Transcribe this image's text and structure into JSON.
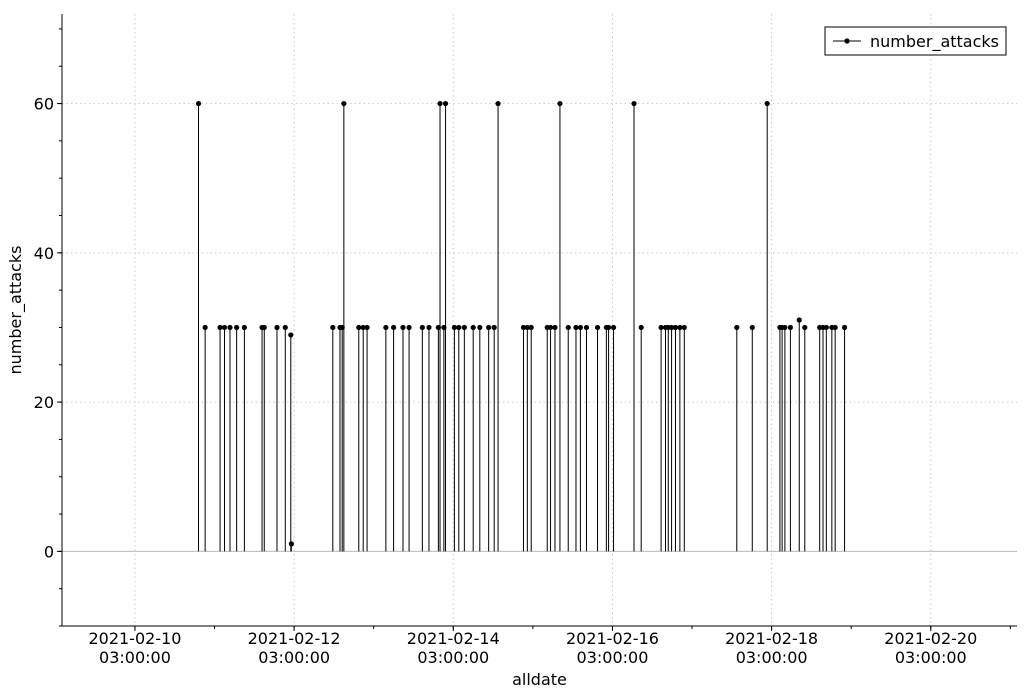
{
  "chart_data": {
    "type": "stem",
    "title": "",
    "xlabel": "alldate",
    "ylabel": "number_attacks",
    "grid": true,
    "legend": {
      "placement": "top-right",
      "entries": [
        "number_attacks"
      ]
    },
    "baseline": 0,
    "xlim": [
      "2021-02-09 05:00:00",
      "2021-02-21 05:00:00"
    ],
    "ylim": [
      -10,
      72
    ],
    "x_ticks": [
      {
        "date": "2021-02-10",
        "time": "03:00:00"
      },
      {
        "date": "2021-02-12",
        "time": "03:00:00"
      },
      {
        "date": "2021-02-14",
        "time": "03:00:00"
      },
      {
        "date": "2021-02-16",
        "time": "03:00:00"
      },
      {
        "date": "2021-02-18",
        "time": "03:00:00"
      },
      {
        "date": "2021-02-20",
        "time": "03:00:00"
      }
    ],
    "y_ticks": [
      "0",
      "20",
      "40",
      "60"
    ],
    "series": [
      {
        "name": "number_attacks",
        "points": [
          [
            "2021-02-10 22:10",
            60
          ],
          [
            "2021-02-11 00:10",
            30
          ],
          [
            "2021-02-11 04:40",
            30
          ],
          [
            "2021-02-11 06:00",
            30
          ],
          [
            "2021-02-11 07:40",
            30
          ],
          [
            "2021-02-11 09:40",
            30
          ],
          [
            "2021-02-11 12:00",
            30
          ],
          [
            "2021-02-11 17:20",
            30
          ],
          [
            "2021-02-11 18:00",
            30
          ],
          [
            "2021-02-11 21:50",
            30
          ],
          [
            "2021-02-12 00:20",
            30
          ],
          [
            "2021-02-12 02:00",
            29
          ],
          [
            "2021-02-12 02:10",
            1
          ],
          [
            "2021-02-12 14:40",
            30
          ],
          [
            "2021-02-12 16:50",
            30
          ],
          [
            "2021-02-12 17:30",
            30
          ],
          [
            "2021-02-12 18:00",
            60
          ],
          [
            "2021-02-12 22:30",
            30
          ],
          [
            "2021-02-12 23:50",
            30
          ],
          [
            "2021-02-13 01:00",
            30
          ],
          [
            "2021-02-13 06:40",
            30
          ],
          [
            "2021-02-13 09:00",
            30
          ],
          [
            "2021-02-13 11:50",
            30
          ],
          [
            "2021-02-13 13:40",
            30
          ],
          [
            "2021-02-13 17:40",
            30
          ],
          [
            "2021-02-13 19:40",
            30
          ],
          [
            "2021-02-13 22:30",
            30
          ],
          [
            "2021-02-13 23:00",
            60
          ],
          [
            "2021-02-14 00:10",
            30
          ],
          [
            "2021-02-14 00:40",
            60
          ],
          [
            "2021-02-14 03:20",
            30
          ],
          [
            "2021-02-14 04:40",
            30
          ],
          [
            "2021-02-14 06:20",
            30
          ],
          [
            "2021-02-14 09:00",
            30
          ],
          [
            "2021-02-14 11:00",
            30
          ],
          [
            "2021-02-14 13:40",
            30
          ],
          [
            "2021-02-14 15:20",
            30
          ],
          [
            "2021-02-14 16:30",
            60
          ],
          [
            "2021-02-15 00:10",
            30
          ],
          [
            "2021-02-15 01:20",
            30
          ],
          [
            "2021-02-15 02:30",
            30
          ],
          [
            "2021-02-15 07:20",
            30
          ],
          [
            "2021-02-15 08:20",
            30
          ],
          [
            "2021-02-15 09:40",
            30
          ],
          [
            "2021-02-15 11:10",
            60
          ],
          [
            "2021-02-15 13:40",
            30
          ],
          [
            "2021-02-15 16:00",
            30
          ],
          [
            "2021-02-15 17:20",
            30
          ],
          [
            "2021-02-15 19:10",
            30
          ],
          [
            "2021-02-15 22:30",
            30
          ],
          [
            "2021-02-16 01:10",
            30
          ],
          [
            "2021-02-16 01:50",
            30
          ],
          [
            "2021-02-16 03:20",
            30
          ],
          [
            "2021-02-16 09:30",
            60
          ],
          [
            "2021-02-16 11:40",
            30
          ],
          [
            "2021-02-16 17:40",
            30
          ],
          [
            "2021-02-16 19:00",
            30
          ],
          [
            "2021-02-16 19:50",
            30
          ],
          [
            "2021-02-16 20:50",
            30
          ],
          [
            "2021-02-16 22:00",
            30
          ],
          [
            "2021-02-16 23:20",
            30
          ],
          [
            "2021-02-17 00:40",
            30
          ],
          [
            "2021-02-17 16:30",
            30
          ],
          [
            "2021-02-17 21:10",
            30
          ],
          [
            "2021-02-18 01:40",
            60
          ],
          [
            "2021-02-18 05:30",
            30
          ],
          [
            "2021-02-18 06:10",
            30
          ],
          [
            "2021-02-18 07:00",
            30
          ],
          [
            "2021-02-18 08:40",
            30
          ],
          [
            "2021-02-18 11:20",
            31
          ],
          [
            "2021-02-18 13:00",
            30
          ],
          [
            "2021-02-18 17:30",
            30
          ],
          [
            "2021-02-18 18:30",
            30
          ],
          [
            "2021-02-18 19:30",
            30
          ],
          [
            "2021-02-18 21:10",
            30
          ],
          [
            "2021-02-18 22:10",
            30
          ],
          [
            "2021-02-19 01:00",
            30
          ]
        ]
      }
    ]
  },
  "colors": {
    "stem": "#000000",
    "baseline": "#bdbdbd",
    "grid": "#cccccc",
    "axis": "#000000",
    "legend_border": "#000000"
  }
}
